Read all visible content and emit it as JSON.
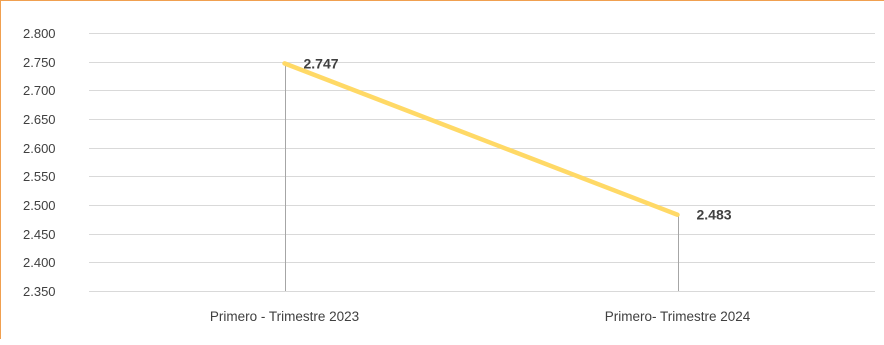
{
  "chart_data": {
    "type": "line",
    "categories": [
      "Primero - Trimestre 2023",
      "Primero- Trimestre 2024"
    ],
    "series": [
      {
        "values": [
          2747,
          2483
        ],
        "data_labels": [
          "2.747",
          "2.483"
        ],
        "color": "#ffd966"
      }
    ],
    "ylim": [
      2350,
      2800
    ],
    "y_ticks": [
      2800,
      2750,
      2700,
      2650,
      2600,
      2550,
      2500,
      2450,
      2400,
      2350
    ],
    "y_tick_labels": [
      "2.800",
      "2.750",
      "2.700",
      "2.650",
      "2.600",
      "2.550",
      "2.500",
      "2.450",
      "2.400",
      "2.350"
    ],
    "grid": true,
    "drop_lines": true,
    "colors": {
      "line": "#ffd966",
      "grid": "#d9d9d9",
      "drop_line": "#a6a6a6",
      "frame": "#f0a050"
    }
  }
}
